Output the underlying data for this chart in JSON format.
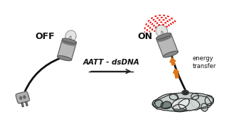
{
  "background_color": "#ffffff",
  "off_label": "OFF",
  "on_label": "ON",
  "arrow_label": "AATT - dsDNA",
  "energy_label": "energy\ntransfer",
  "off_label_fontsize": 9,
  "on_label_fontsize": 9,
  "arrow_label_fontsize": 7.5,
  "energy_label_fontsize": 6,
  "cord_color": "#111111",
  "dna_light": "#c8d0cc",
  "dna_mid": "#a0b0a8",
  "dna_dark": "#607070",
  "dna_outline": "#2a2a2a",
  "red_glow_color": "#ee0000",
  "orange_arrow_color": "#e07818",
  "label_color": "#111111",
  "socket_face": "#b8b8b8",
  "socket_dark": "#888888",
  "socket_edge": "#555555",
  "bulb_glass": "#e0e0e0",
  "plug_body": "#b0b0b0",
  "plug_dark": "#888888",
  "fig_width": 3.29,
  "fig_height": 1.89,
  "dpi": 100
}
